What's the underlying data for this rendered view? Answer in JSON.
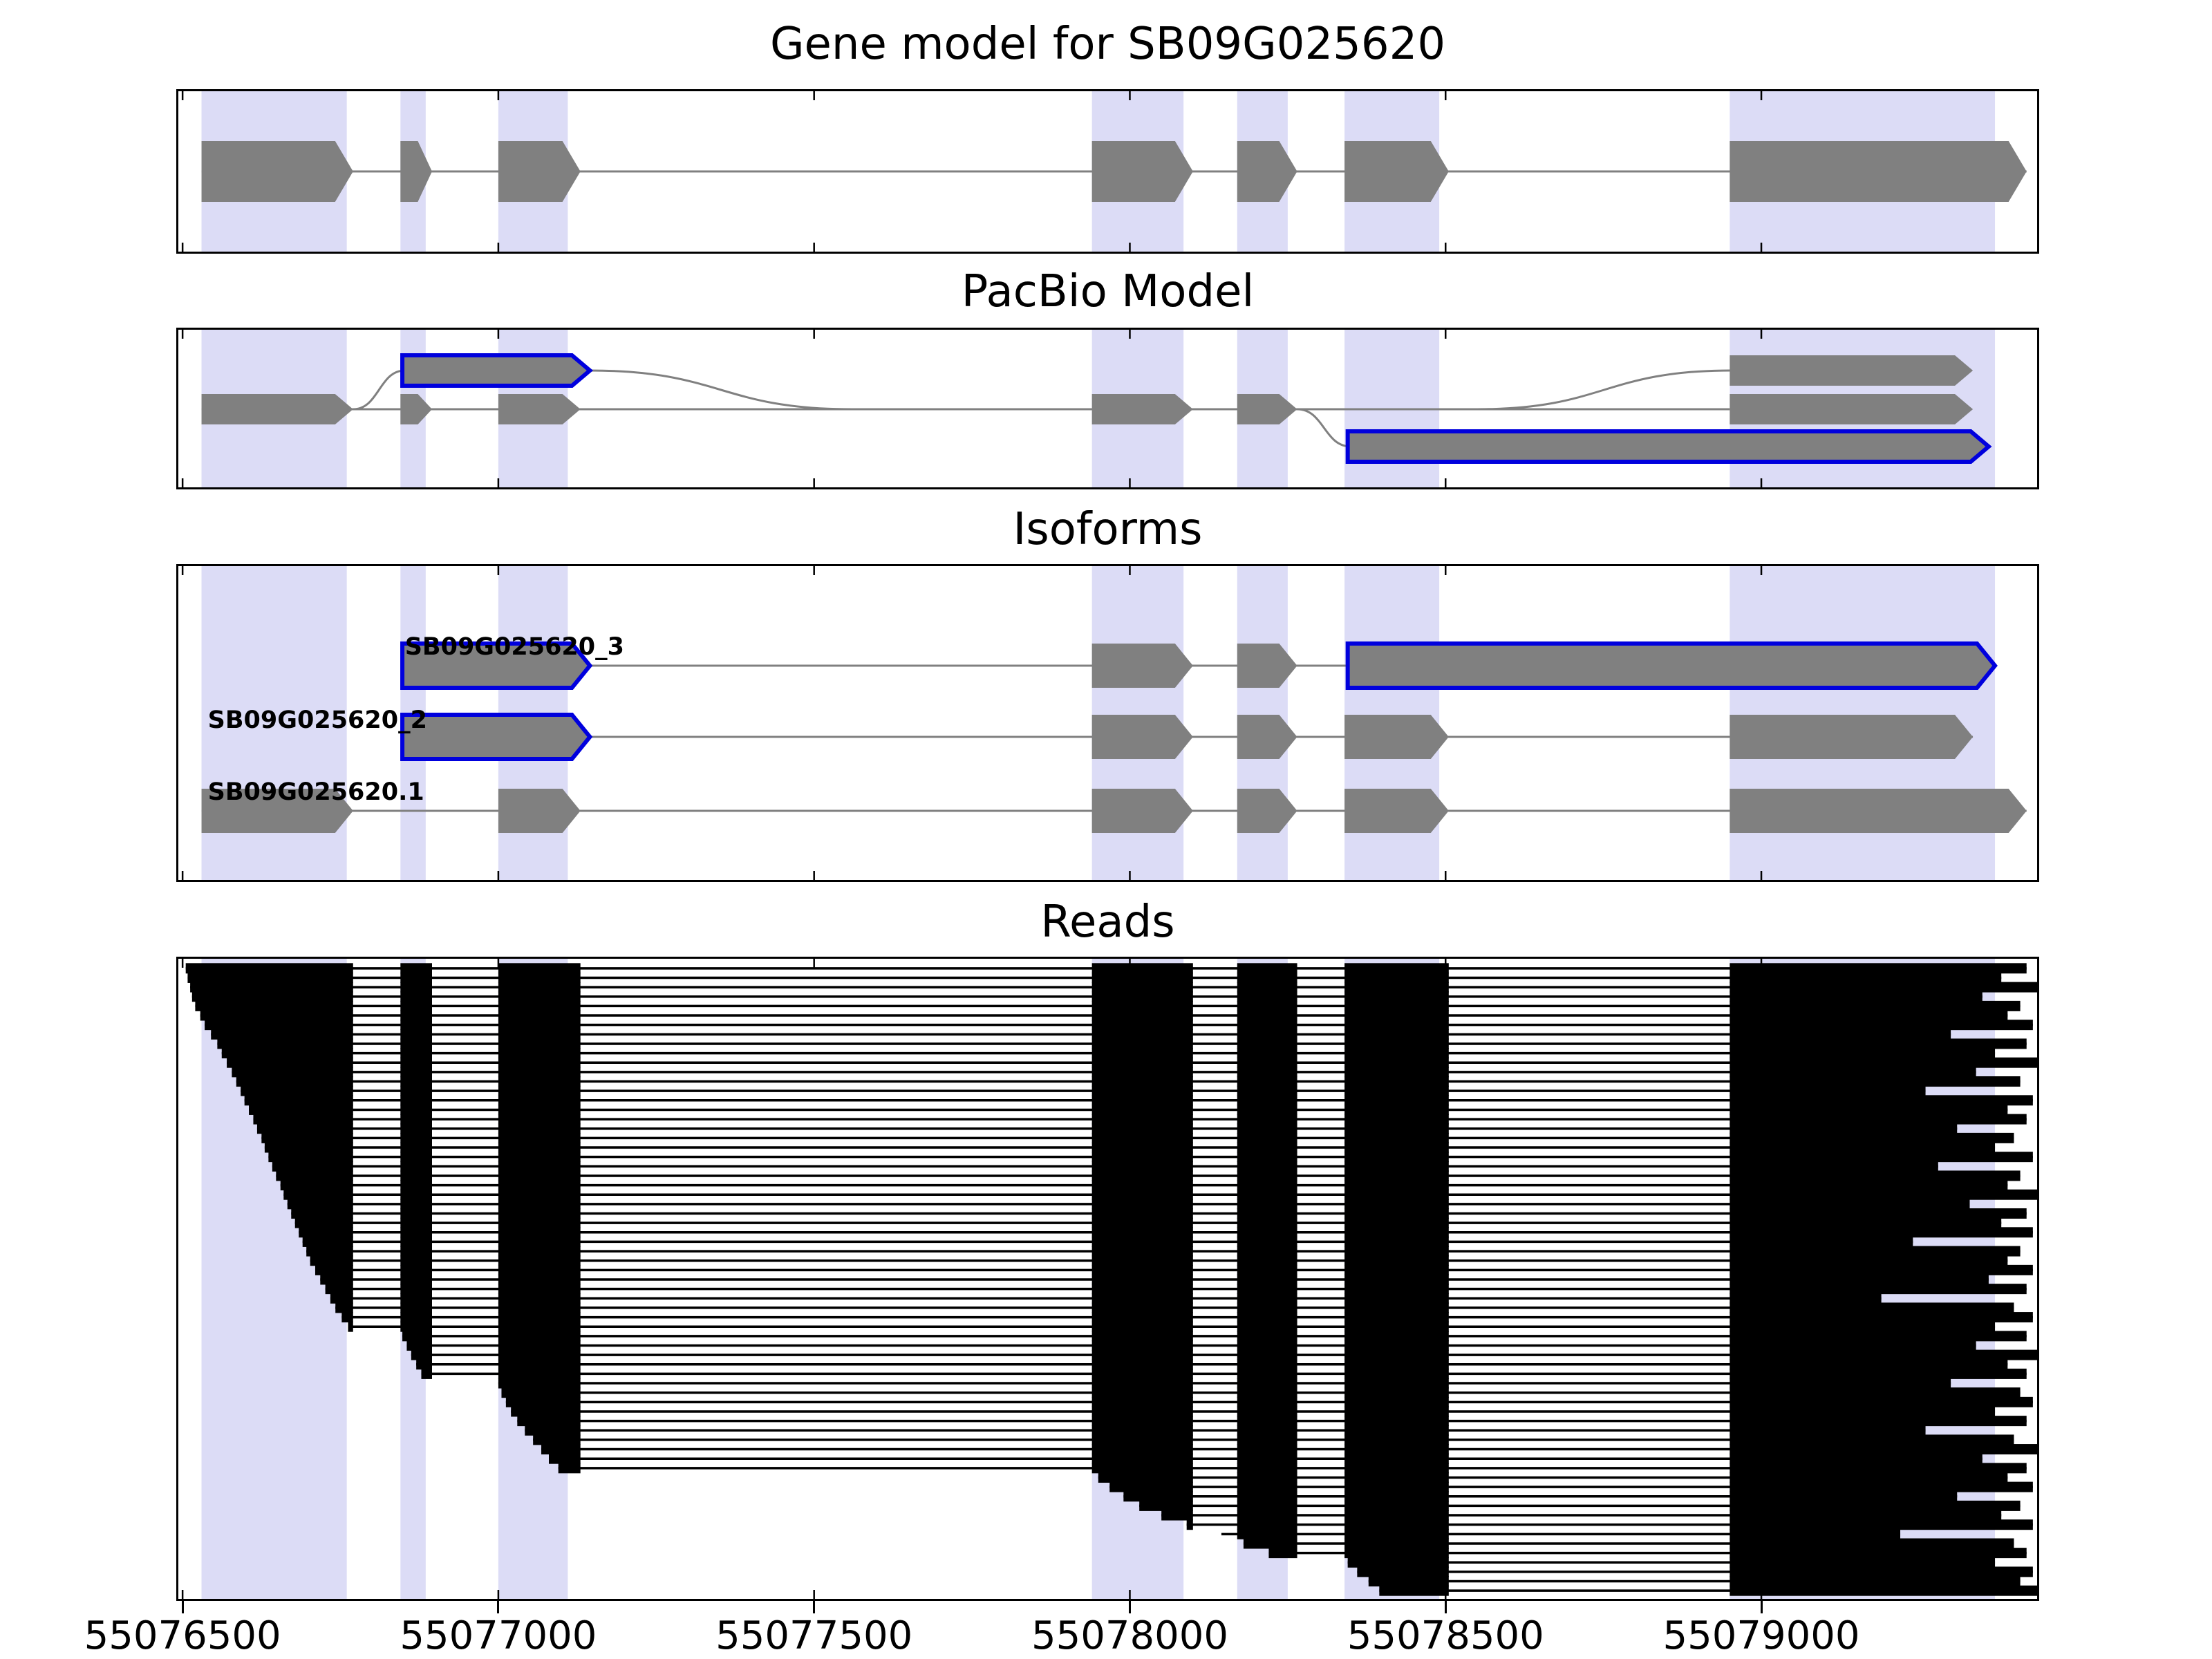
{
  "titles": {
    "gene_model": "Gene model for SB09G025620",
    "pacbio": "PacBio Model",
    "isoforms": "Isoforms",
    "reads": "Reads"
  },
  "axis": {
    "tick_values": [
      55076500,
      55077000,
      55077500,
      55078000,
      55078500,
      55079000
    ],
    "tick_labels": [
      "55076500",
      "55077000",
      "55077500",
      "55078000",
      "55078500",
      "55079000"
    ]
  },
  "colors": {
    "exon_gray": "#808080",
    "line_gray": "#808080",
    "outline_blue": "#0000dd",
    "band": "#dcdcf6",
    "read_black": "#000000",
    "border": "#000000",
    "background": "#ffffff"
  },
  "chart_data": {
    "type": "genomic-tracks",
    "x_range": [
      55076490,
      55079440
    ],
    "highlight_bands": [
      [
        55076530,
        55076760
      ],
      [
        55076845,
        55076885
      ],
      [
        55077000,
        55077110
      ],
      [
        55077940,
        55078085
      ],
      [
        55078170,
        55078250
      ],
      [
        55078340,
        55078490
      ],
      [
        55078950,
        55079370
      ]
    ],
    "gene_model": {
      "exons": [
        {
          "start": 55076530,
          "end": 55076770,
          "arrow": true
        },
        {
          "start": 55076845,
          "end": 55076895,
          "arrow": true
        },
        {
          "start": 55077000,
          "end": 55077130,
          "arrow": true
        },
        {
          "start": 55077940,
          "end": 55078100,
          "arrow": true
        },
        {
          "start": 55078170,
          "end": 55078265,
          "arrow": true
        },
        {
          "start": 55078340,
          "end": 55078505,
          "arrow": true
        },
        {
          "start": 55078950,
          "end": 55079420,
          "arrow": true
        }
      ],
      "line": [
        55076530,
        55079420
      ]
    },
    "pacbio": {
      "elements": [
        {
          "start": 55076530,
          "end": 55076770,
          "row": "main",
          "arrow": true
        },
        {
          "start": 55076845,
          "end": 55076895,
          "row": "main",
          "arrow": true
        },
        {
          "start": 55077000,
          "end": 55077130,
          "row": "main",
          "arrow": true
        },
        {
          "start": 55076848,
          "end": 55077145,
          "row": "top",
          "arrow": true,
          "outline": true
        },
        {
          "start": 55077940,
          "end": 55078100,
          "row": "main",
          "arrow": true
        },
        {
          "start": 55078170,
          "end": 55078265,
          "row": "main",
          "arrow": true
        },
        {
          "start": 55078345,
          "end": 55079360,
          "row": "bottom",
          "arrow": true,
          "outline": true
        },
        {
          "start": 55078950,
          "end": 55079335,
          "row": "top",
          "arrow": true
        },
        {
          "start": 55078950,
          "end": 55079335,
          "row": "main",
          "arrow": true
        }
      ],
      "connectors": [
        {
          "type": "line",
          "row": "main",
          "from": 55076530,
          "to": 55078950
        },
        {
          "type": "curve",
          "from": 55076770,
          "fromRow": "main",
          "to": 55076852,
          "toRow": "top"
        },
        {
          "type": "curve",
          "from": 55077145,
          "fromRow": "top",
          "to": 55077560,
          "toRow": "main"
        },
        {
          "type": "curve",
          "from": 55078265,
          "fromRow": "main",
          "to": 55078350,
          "toRow": "bottom"
        },
        {
          "type": "curve",
          "from": 55078550,
          "fromRow": "main",
          "to": 55078952,
          "toRow": "top"
        }
      ]
    },
    "isoforms": {
      "items": [
        {
          "label": "SB09G025620_3",
          "label_x": 55076852,
          "line": [
            55076848,
            55079370
          ],
          "exons": [
            {
              "start": 55076848,
              "end": 55077145,
              "arrow": true,
              "outline": true
            },
            {
              "start": 55077940,
              "end": 55078100,
              "arrow": true
            },
            {
              "start": 55078170,
              "end": 55078265,
              "arrow": true
            },
            {
              "start": 55078345,
              "end": 55079370,
              "arrow": true,
              "outline": true
            }
          ]
        },
        {
          "label": "SB09G025620_2",
          "label_x": 55076540,
          "line": [
            55076848,
            55079335
          ],
          "exons": [
            {
              "start": 55076848,
              "end": 55077145,
              "arrow": true,
              "outline": true
            },
            {
              "start": 55077940,
              "end": 55078100,
              "arrow": true
            },
            {
              "start": 55078170,
              "end": 55078265,
              "arrow": true
            },
            {
              "start": 55078340,
              "end": 55078505,
              "arrow": true
            },
            {
              "start": 55078950,
              "end": 55079335,
              "arrow": true
            }
          ]
        },
        {
          "label": "SB09G025620.1",
          "label_x": 55076540,
          "line": [
            55076530,
            55079420
          ],
          "exons": [
            {
              "start": 55076530,
              "end": 55076770,
              "arrow": true
            },
            {
              "start": 55077000,
              "end": 55077130,
              "arrow": true
            },
            {
              "start": 55077940,
              "end": 55078100,
              "arrow": true
            },
            {
              "start": 55078170,
              "end": 55078265,
              "arrow": true
            },
            {
              "start": 55078340,
              "end": 55078505,
              "arrow": true
            },
            {
              "start": 55078950,
              "end": 55079420,
              "arrow": true
            }
          ]
        }
      ]
    },
    "reads": {
      "exon_blocks": [
        [
          55076500,
          55076770
        ],
        [
          55076845,
          55076895
        ],
        [
          55077000,
          55077130
        ],
        [
          55077940,
          55078100
        ],
        [
          55078170,
          55078265
        ],
        [
          55078340,
          55078505
        ],
        [
          55078950,
          55079460
        ]
      ],
      "spans": [
        [
          55076505,
          55079420
        ],
        [
          55076508,
          55079380
        ],
        [
          55076512,
          55079440
        ],
        [
          55076515,
          55079350
        ],
        [
          55076520,
          55079410
        ],
        [
          55076528,
          55079390
        ],
        [
          55076535,
          55079430
        ],
        [
          55076545,
          55079300
        ],
        [
          55076555,
          55079420
        ],
        [
          55076562,
          55079370
        ],
        [
          55076570,
          55079440
        ],
        [
          55076578,
          55079340
        ],
        [
          55076585,
          55079410
        ],
        [
          55076592,
          55079260
        ],
        [
          55076598,
          55079430
        ],
        [
          55076605,
          55079390
        ],
        [
          55076612,
          55079420
        ],
        [
          55076618,
          55079310
        ],
        [
          55076625,
          55079400
        ],
        [
          55076630,
          55079370
        ],
        [
          55076636,
          55079430
        ],
        [
          55076642,
          55079280
        ],
        [
          55076648,
          55079410
        ],
        [
          55076655,
          55079390
        ],
        [
          55076660,
          55079440
        ],
        [
          55076666,
          55079330
        ],
        [
          55076672,
          55079420
        ],
        [
          55076678,
          55079380
        ],
        [
          55076684,
          55079430
        ],
        [
          55076690,
          55079240
        ],
        [
          55076696,
          55079410
        ],
        [
          55076702,
          55079390
        ],
        [
          55076710,
          55079430
        ],
        [
          55076718,
          55079360
        ],
        [
          55076726,
          55079420
        ],
        [
          55076734,
          55079190
        ],
        [
          55076742,
          55079400
        ],
        [
          55076752,
          55079430
        ],
        [
          55076762,
          55079370
        ],
        [
          55076848,
          55079420
        ],
        [
          55076855,
          55079340
        ],
        [
          55076862,
          55079440
        ],
        [
          55076870,
          55079390
        ],
        [
          55076878,
          55079420
        ],
        [
          55077000,
          55079300
        ],
        [
          55077005,
          55079410
        ],
        [
          55077012,
          55079430
        ],
        [
          55077020,
          55079370
        ],
        [
          55077030,
          55079420
        ],
        [
          55077042,
          55079260
        ],
        [
          55077055,
          55079400
        ],
        [
          55077068,
          55079440
        ],
        [
          55077080,
          55079350
        ],
        [
          55077095,
          55079420
        ],
        [
          55077950,
          55079390
        ],
        [
          55077968,
          55079430
        ],
        [
          55077990,
          55079310
        ],
        [
          55078015,
          55079410
        ],
        [
          55078050,
          55079380
        ],
        [
          55078090,
          55079430
        ],
        [
          55078145,
          55079220
        ],
        [
          55078180,
          55079400
        ],
        [
          55078220,
          55079420
        ],
        [
          55078345,
          55079370
        ],
        [
          55078360,
          55079430
        ],
        [
          55078378,
          55079410
        ],
        [
          55078395,
          55079440
        ]
      ]
    }
  }
}
